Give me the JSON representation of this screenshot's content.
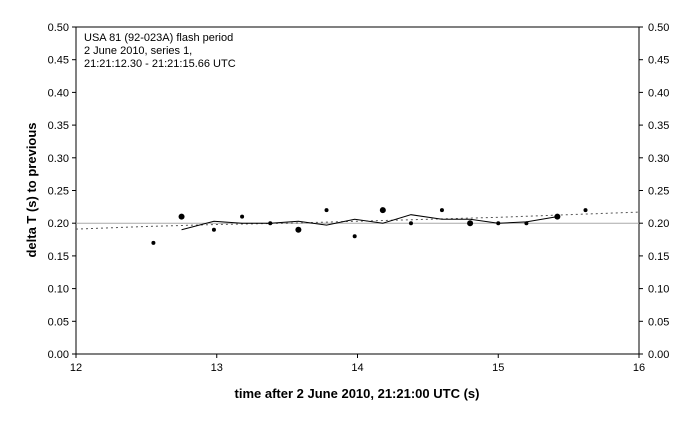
{
  "chart_data": {
    "type": "scatter",
    "annotation_lines": [
      "USA 81 (92-023A) flash period",
      "2 June 2010, series 1,",
      "21:21:12.30 - 21:21:15.66 UTC"
    ],
    "xlabel": "time after 2 June 2010, 21:21:00 UTC (s)",
    "ylabel": "delta T (s) to previous",
    "xlim": [
      12,
      16
    ],
    "ylim": [
      0,
      0.5
    ],
    "x_ticks": [
      "12",
      "13",
      "14",
      "15",
      "16"
    ],
    "y_ticks": [
      "0.00",
      "0.05",
      "0.10",
      "0.15",
      "0.20",
      "0.25",
      "0.30",
      "0.35",
      "0.40",
      "0.45",
      "0.50"
    ],
    "reference_line": 0.2,
    "grid": false,
    "colors": {
      "marker": "#000000",
      "line": "#000000",
      "trend": "#555555",
      "reference": "#aaaaaa"
    },
    "points": [
      {
        "x": 12.55,
        "y": 0.17,
        "size": "small"
      },
      {
        "x": 12.75,
        "y": 0.21,
        "size": "large"
      },
      {
        "x": 12.98,
        "y": 0.19,
        "size": "small"
      },
      {
        "x": 13.18,
        "y": 0.21,
        "size": "small"
      },
      {
        "x": 13.38,
        "y": 0.2,
        "size": "small"
      },
      {
        "x": 13.58,
        "y": 0.19,
        "size": "large"
      },
      {
        "x": 13.78,
        "y": 0.22,
        "size": "small"
      },
      {
        "x": 13.98,
        "y": 0.18,
        "size": "small"
      },
      {
        "x": 14.18,
        "y": 0.22,
        "size": "large"
      },
      {
        "x": 14.38,
        "y": 0.2,
        "size": "small"
      },
      {
        "x": 14.6,
        "y": 0.22,
        "size": "small"
      },
      {
        "x": 14.8,
        "y": 0.2,
        "size": "large"
      },
      {
        "x": 15.0,
        "y": 0.2,
        "size": "small"
      },
      {
        "x": 15.2,
        "y": 0.2,
        "size": "small"
      },
      {
        "x": 15.42,
        "y": 0.21,
        "size": "large"
      },
      {
        "x": 15.62,
        "y": 0.22,
        "size": "small"
      }
    ],
    "running_mean": {
      "x": [
        12.75,
        12.98,
        13.18,
        13.38,
        13.58,
        13.78,
        13.98,
        14.18,
        14.38,
        14.6,
        14.8,
        15.0,
        15.2,
        15.42
      ],
      "y": [
        0.19,
        0.203,
        0.2,
        0.2,
        0.203,
        0.197,
        0.206,
        0.2,
        0.213,
        0.206,
        0.206,
        0.2,
        0.202,
        0.21
      ]
    },
    "trend_line": {
      "x": [
        12.0,
        12.5,
        13.0,
        13.5,
        14.0,
        14.5,
        15.0,
        15.5,
        16.0
      ],
      "y": [
        0.191,
        0.195,
        0.198,
        0.2,
        0.203,
        0.206,
        0.209,
        0.213,
        0.217
      ]
    }
  }
}
